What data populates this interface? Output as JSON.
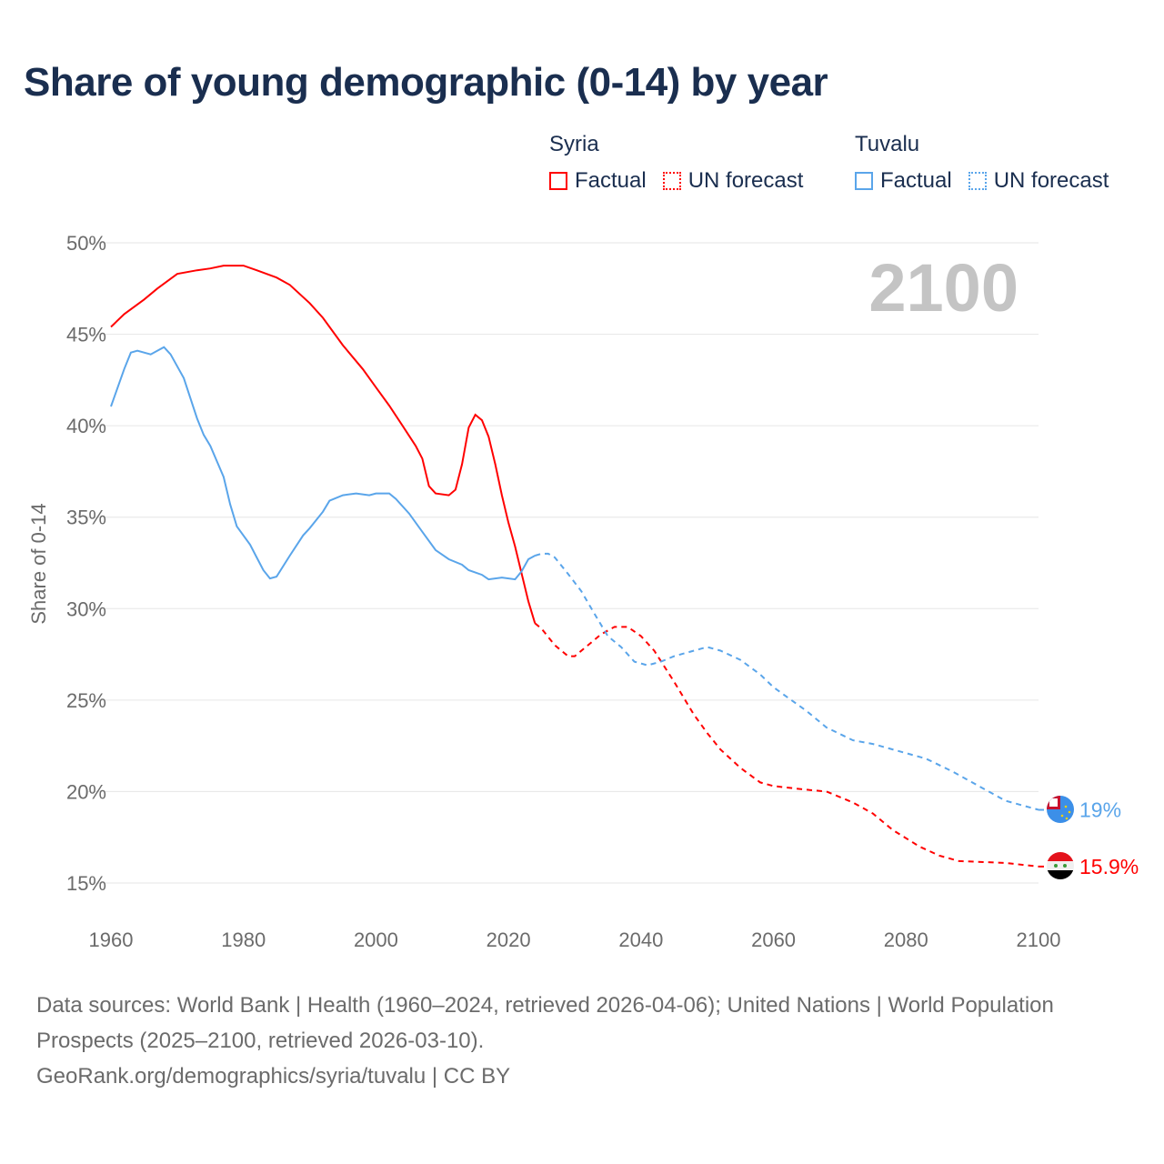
{
  "title": "Share of young demographic (0-14) by year",
  "legend": [
    {
      "country": "Syria",
      "factual_label": "Factual",
      "forecast_label": "UN forecast",
      "color": "#ff0000"
    },
    {
      "country": "Tuvalu",
      "factual_label": "Factual",
      "forecast_label": "UN forecast",
      "color": "#5aa5ea"
    }
  ],
  "year_watermark": "2100",
  "footer": {
    "line1": "Data sources: World Bank | Health (1960–2024, retrieved 2026-04-06); United Nations | World Population Prospects (2025–2100, retrieved 2026-03-10).",
    "line2": "GeoRank.org/demographics/syria/tuvalu | CC BY"
  },
  "chart_data": {
    "type": "line",
    "title": "Share of young demographic (0-14) by year",
    "xlabel": "",
    "ylabel": "Share of 0-14",
    "xlim": [
      1960,
      2100
    ],
    "ylim": [
      15,
      50
    ],
    "x_ticks": [
      "1960",
      "1980",
      "2000",
      "2020",
      "2040",
      "2060",
      "2080",
      "2100"
    ],
    "x_tick_values": [
      1960,
      1980,
      2000,
      2020,
      2040,
      2060,
      2080,
      2100
    ],
    "y_ticks": [
      "15%",
      "20%",
      "25%",
      "30%",
      "35%",
      "40%",
      "45%",
      "50%"
    ],
    "y_tick_values": [
      15,
      20,
      25,
      30,
      35,
      40,
      45,
      50
    ],
    "grid": true,
    "legend_position": "top-right",
    "series": [
      {
        "name": "Syria",
        "color": "#ff0000",
        "end_label": "15.9%",
        "factual": [
          [
            1960,
            45.4
          ],
          [
            1962,
            46.1
          ],
          [
            1965,
            46.9
          ],
          [
            1967,
            47.5
          ],
          [
            1970,
            48.3
          ],
          [
            1973,
            48.5
          ],
          [
            1975,
            48.6
          ],
          [
            1977,
            48.75
          ],
          [
            1980,
            48.75
          ],
          [
            1982,
            48.5
          ],
          [
            1985,
            48.1
          ],
          [
            1987,
            47.7
          ],
          [
            1990,
            46.7
          ],
          [
            1992,
            45.9
          ],
          [
            1995,
            44.4
          ],
          [
            1998,
            43.1
          ],
          [
            2000,
            42.1
          ],
          [
            2002,
            41.1
          ],
          [
            2004,
            40.0
          ],
          [
            2006,
            38.9
          ],
          [
            2007,
            38.2
          ],
          [
            2008,
            36.7
          ],
          [
            2009,
            36.3
          ],
          [
            2011,
            36.2
          ],
          [
            2012,
            36.5
          ],
          [
            2013,
            37.9
          ],
          [
            2014,
            39.9
          ],
          [
            2015,
            40.6
          ],
          [
            2016,
            40.3
          ],
          [
            2017,
            39.4
          ],
          [
            2018,
            37.9
          ],
          [
            2019,
            36.2
          ],
          [
            2020,
            34.7
          ],
          [
            2021,
            33.4
          ],
          [
            2022,
            31.9
          ],
          [
            2023,
            30.4
          ],
          [
            2024,
            29.2
          ]
        ],
        "forecast": [
          [
            2024,
            29.2
          ],
          [
            2025,
            28.9
          ],
          [
            2027,
            28.0
          ],
          [
            2029,
            27.4
          ],
          [
            2030,
            27.4
          ],
          [
            2032,
            28.0
          ],
          [
            2034,
            28.6
          ],
          [
            2036,
            29.0
          ],
          [
            2038,
            29.0
          ],
          [
            2040,
            28.5
          ],
          [
            2042,
            27.7
          ],
          [
            2045,
            26.0
          ],
          [
            2048,
            24.2
          ],
          [
            2050,
            23.2
          ],
          [
            2052,
            22.3
          ],
          [
            2055,
            21.3
          ],
          [
            2058,
            20.5
          ],
          [
            2060,
            20.3
          ],
          [
            2065,
            20.1
          ],
          [
            2068,
            20.0
          ],
          [
            2072,
            19.4
          ],
          [
            2075,
            18.8
          ],
          [
            2078,
            17.9
          ],
          [
            2082,
            17.0
          ],
          [
            2085,
            16.5
          ],
          [
            2088,
            16.2
          ],
          [
            2095,
            16.1
          ],
          [
            2100,
            15.9
          ]
        ]
      },
      {
        "name": "Tuvalu",
        "color": "#5aa5ea",
        "end_label": "19%",
        "factual": [
          [
            1960,
            41.05
          ],
          [
            1962,
            43.1
          ],
          [
            1963,
            44.0
          ],
          [
            1964,
            44.1
          ],
          [
            1966,
            43.9
          ],
          [
            1968,
            44.3
          ],
          [
            1969,
            43.9
          ],
          [
            1971,
            42.6
          ],
          [
            1973,
            40.4
          ],
          [
            1974,
            39.5
          ],
          [
            1975,
            38.9
          ],
          [
            1977,
            37.2
          ],
          [
            1978,
            35.7
          ],
          [
            1979,
            34.5
          ],
          [
            1981,
            33.5
          ],
          [
            1982,
            32.8
          ],
          [
            1983,
            32.1
          ],
          [
            1984,
            31.65
          ],
          [
            1985,
            31.75
          ],
          [
            1987,
            32.9
          ],
          [
            1989,
            34.0
          ],
          [
            1990,
            34.4
          ],
          [
            1992,
            35.3
          ],
          [
            1993,
            35.9
          ],
          [
            1995,
            36.2
          ],
          [
            1997,
            36.3
          ],
          [
            1999,
            36.2
          ],
          [
            2000,
            36.3
          ],
          [
            2002,
            36.3
          ],
          [
            2003,
            36.0
          ],
          [
            2005,
            35.2
          ],
          [
            2007,
            34.2
          ],
          [
            2009,
            33.2
          ],
          [
            2011,
            32.7
          ],
          [
            2013,
            32.4
          ],
          [
            2014,
            32.1
          ],
          [
            2016,
            31.85
          ],
          [
            2017,
            31.6
          ],
          [
            2019,
            31.7
          ],
          [
            2021,
            31.6
          ],
          [
            2022,
            32.05
          ],
          [
            2023,
            32.7
          ],
          [
            2024,
            32.9
          ]
        ],
        "forecast": [
          [
            2024,
            32.9
          ],
          [
            2025,
            33.0
          ],
          [
            2026,
            33.0
          ],
          [
            2027,
            32.8
          ],
          [
            2029,
            31.9
          ],
          [
            2031,
            30.95
          ],
          [
            2033,
            29.7
          ],
          [
            2035,
            28.5
          ],
          [
            2037,
            27.9
          ],
          [
            2039,
            27.1
          ],
          [
            2041,
            26.9
          ],
          [
            2043,
            27.1
          ],
          [
            2045,
            27.4
          ],
          [
            2048,
            27.7
          ],
          [
            2050,
            27.9
          ],
          [
            2052,
            27.7
          ],
          [
            2055,
            27.2
          ],
          [
            2058,
            26.4
          ],
          [
            2060,
            25.7
          ],
          [
            2065,
            24.4
          ],
          [
            2068,
            23.5
          ],
          [
            2072,
            22.8
          ],
          [
            2075,
            22.6
          ],
          [
            2080,
            22.1
          ],
          [
            2083,
            21.8
          ],
          [
            2087,
            21.1
          ],
          [
            2090,
            20.5
          ],
          [
            2095,
            19.5
          ],
          [
            2100,
            19.0
          ]
        ]
      }
    ]
  }
}
